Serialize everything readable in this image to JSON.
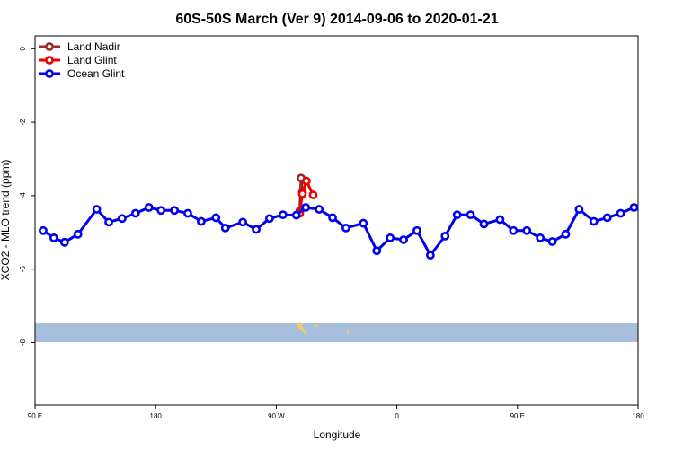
{
  "chart_data": {
    "type": "line",
    "title": "60S-50S March (Ver 9)   2014-09-06 to 2020-01-21",
    "xlabel": "Longitude",
    "ylabel": "XCO2 - MLO trend (ppm)",
    "xlim": [
      90,
      540
    ],
    "ylim": [
      -9.7,
      0.35
    ],
    "x_ticks": [
      {
        "value": 90,
        "label": "90 E"
      },
      {
        "value": 180,
        "label": "180"
      },
      {
        "value": 270,
        "label": "90 W"
      },
      {
        "value": 360,
        "label": "0"
      },
      {
        "value": 450,
        "label": "90 E"
      },
      {
        "value": 540,
        "label": "180"
      }
    ],
    "y_ticks": [
      {
        "value": 0,
        "label": "0"
      },
      {
        "value": -2,
        "label": "-2"
      },
      {
        "value": -4,
        "label": "-4"
      },
      {
        "value": -6,
        "label": "-6"
      },
      {
        "value": -8,
        "label": "-8"
      }
    ],
    "grid": false,
    "legend_position": "top-left",
    "map_band": {
      "lat_label": "60S-50S",
      "ocean_color": "#a8bedd",
      "land_color": "#f5c86a"
    },
    "series": [
      {
        "name": "Land Nadir",
        "color": "#9b2a2a",
        "x": [
          287.5,
          288.5,
          289.5
        ],
        "y": [
          -4.42,
          -3.52,
          -3.9
        ]
      },
      {
        "name": "Land Glint",
        "color": "#ee0000",
        "x": [
          287.5,
          289.5,
          292.5,
          297.5
        ],
        "y": [
          -4.48,
          -3.95,
          -3.6,
          -3.98
        ]
      },
      {
        "name": "Ocean Glint",
        "color": "#0000ee",
        "x": [
          96,
          104,
          112,
          122,
          136,
          145,
          155,
          165,
          175,
          184,
          194,
          204,
          214,
          225,
          232,
          245,
          255,
          265,
          275,
          285,
          292,
          302,
          312,
          322,
          335,
          345,
          355,
          365,
          375,
          385,
          396,
          405,
          415,
          425,
          437,
          447,
          457,
          467,
          476,
          486,
          496,
          507,
          517,
          527,
          537
        ],
        "y": [
          -4.95,
          -5.15,
          -5.27,
          -5.05,
          -4.37,
          -4.72,
          -4.62,
          -4.48,
          -4.32,
          -4.4,
          -4.4,
          -4.48,
          -4.7,
          -4.6,
          -4.88,
          -4.72,
          -4.92,
          -4.62,
          -4.52,
          -4.53,
          -4.32,
          -4.37,
          -4.6,
          -4.88,
          -4.75,
          -5.5,
          -5.15,
          -5.2,
          -4.95,
          -5.62,
          -5.1,
          -4.52,
          -4.52,
          -4.77,
          -4.65,
          -4.95,
          -4.95,
          -5.15,
          -5.25,
          -5.05,
          -4.37,
          -4.7,
          -4.6,
          -4.48,
          -4.32
        ]
      }
    ]
  }
}
